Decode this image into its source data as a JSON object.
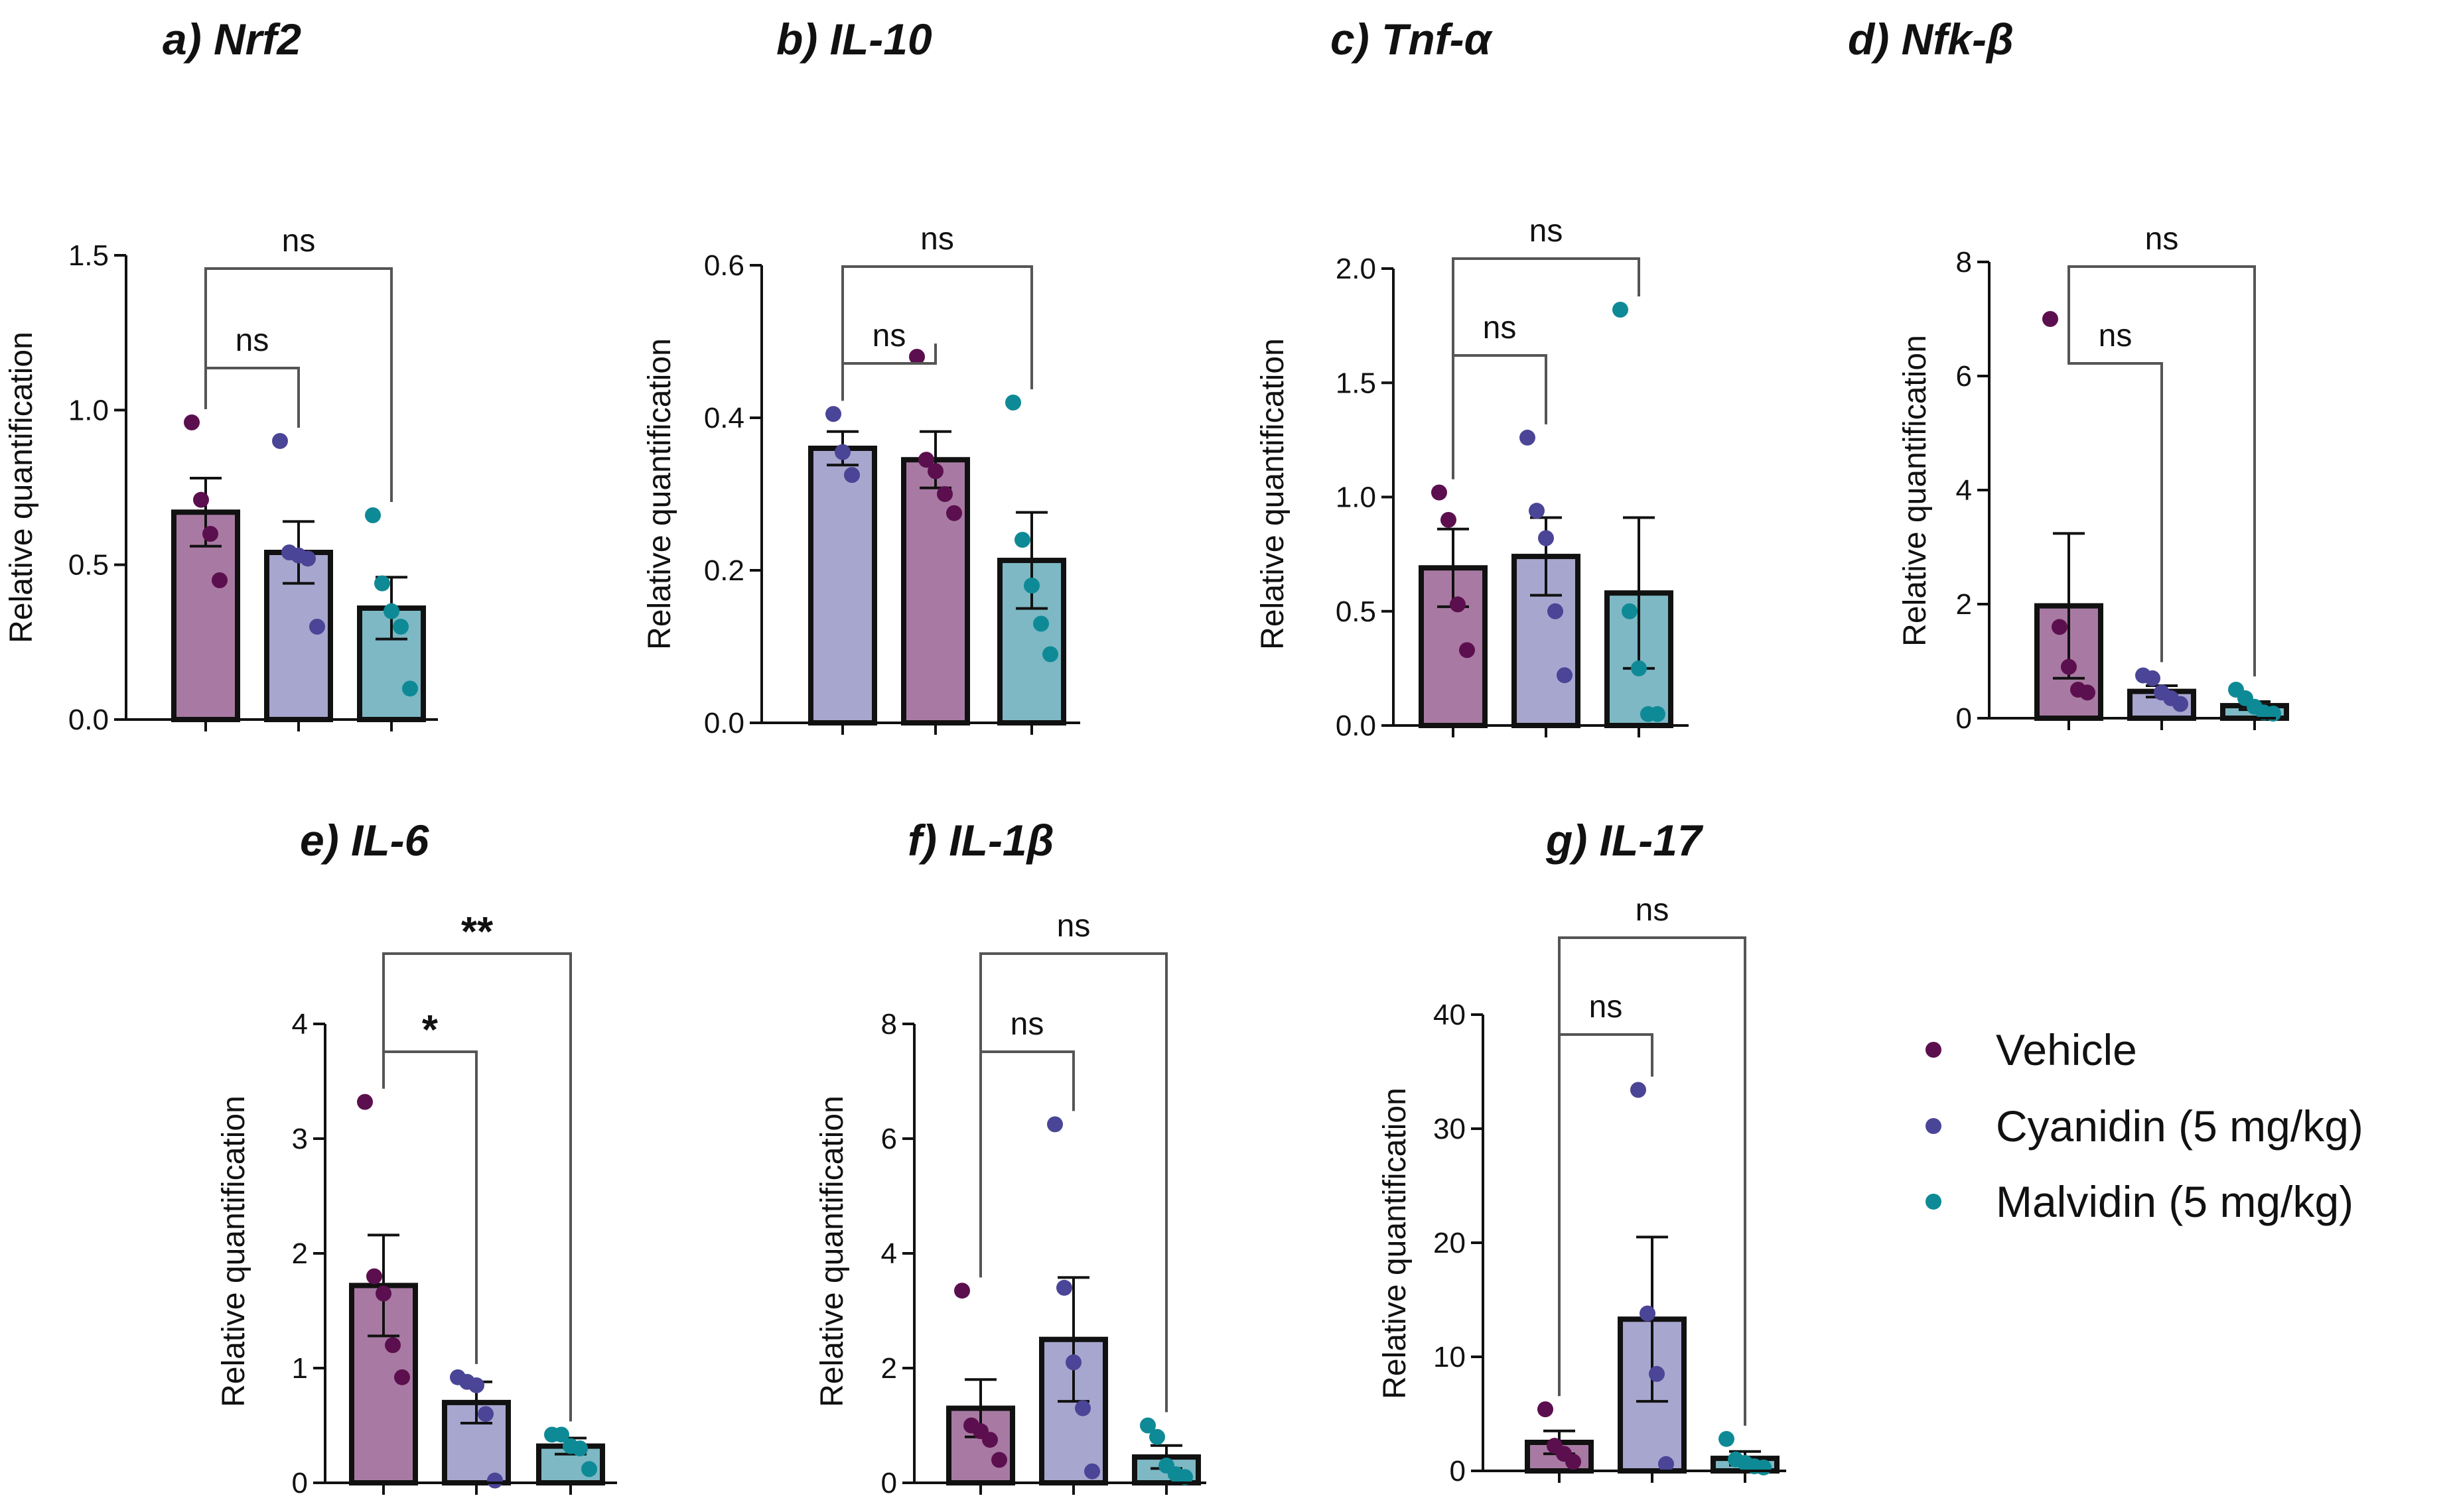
{
  "legend": [
    {
      "label": "Vehicle",
      "color": "#5c0f4e"
    },
    {
      "label": "Cyanidin (5 mg/kg)",
      "color": "#4a4596"
    },
    {
      "label": "Malvidin (5 mg/kg)",
      "color": "#0e8a96"
    }
  ],
  "fills": {
    "Vehicle": "#a87aa3",
    "Cyanidin": "#a7a6ce",
    "Malvidin": "#7db8c4"
  },
  "chart_data": [
    {
      "id": "nrf2",
      "type": "bar",
      "title": "a) Nrf2",
      "ylabel": "Relative quantification",
      "ylim": [
        0,
        1.5
      ],
      "ticks": [
        0.0,
        0.5,
        1.0,
        1.5
      ],
      "tick_labels": [
        "0.0",
        "0.5",
        "1.0",
        "1.5"
      ],
      "bars": [
        {
          "group": "Vehicle",
          "mean": 0.67,
          "sem": 0.11,
          "points": [
            0.96,
            0.71,
            0.6,
            0.45
          ]
        },
        {
          "group": "Cyanidin",
          "mean": 0.54,
          "sem": 0.1,
          "points": [
            0.9,
            0.54,
            0.53,
            0.52,
            0.3
          ]
        },
        {
          "group": "Malvidin",
          "mean": 0.36,
          "sem": 0.1,
          "points": [
            0.66,
            0.44,
            0.35,
            0.3,
            0.1
          ]
        }
      ],
      "comparisons": [
        {
          "from": 0,
          "to": 1,
          "label": "ns"
        },
        {
          "from": 0,
          "to": 2,
          "label": "ns"
        }
      ]
    },
    {
      "id": "il10",
      "type": "bar",
      "title": "b) IL-10",
      "ylabel": "Relative quantification",
      "ylim": [
        0,
        0.6
      ],
      "ticks": [
        0.0,
        0.2,
        0.4,
        0.6
      ],
      "tick_labels": [
        "0.0",
        "0.2",
        "0.4",
        "0.6"
      ],
      "bars": [
        {
          "group": "Cyanidin",
          "mean": 0.36,
          "sem": 0.022,
          "points": [
            0.405,
            0.355,
            0.325
          ]
        },
        {
          "group": "Vehicle",
          "mean": 0.345,
          "sem": 0.037,
          "points": [
            0.48,
            0.345,
            0.33,
            0.3,
            0.275
          ]
        },
        {
          "group": "Malvidin",
          "mean": 0.213,
          "sem": 0.063,
          "points": [
            0.42,
            0.24,
            0.18,
            0.13,
            0.09
          ]
        }
      ],
      "comparisons": [
        {
          "from": 0,
          "to": 1,
          "label": "ns"
        },
        {
          "from": 0,
          "to": 2,
          "label": "ns"
        }
      ]
    },
    {
      "id": "tnf",
      "type": "bar",
      "title": "c) Tnf-α",
      "ylabel": "Relative quantification",
      "ylim": [
        0,
        2.0
      ],
      "ticks": [
        0.0,
        0.5,
        1.0,
        1.5,
        2.0
      ],
      "tick_labels": [
        "0.0",
        "0.5",
        "1.0",
        "1.5",
        "2.0"
      ],
      "bars": [
        {
          "group": "Vehicle",
          "mean": 0.69,
          "sem": 0.17,
          "points": [
            1.02,
            0.9,
            0.53,
            0.33
          ]
        },
        {
          "group": "Cyanidin",
          "mean": 0.74,
          "sem": 0.17,
          "points": [
            1.26,
            0.94,
            0.82,
            0.5,
            0.22
          ]
        },
        {
          "group": "Malvidin",
          "mean": 0.58,
          "sem": 0.33,
          "points": [
            1.82,
            0.5,
            0.25,
            0.05,
            0.05
          ]
        }
      ],
      "comparisons": [
        {
          "from": 0,
          "to": 1,
          "label": "ns"
        },
        {
          "from": 0,
          "to": 2,
          "label": "ns"
        }
      ]
    },
    {
      "id": "nfkb",
      "type": "bar",
      "title": "d) Nfk-β",
      "ylabel": "Relative quantification",
      "ylim": [
        0,
        8
      ],
      "ticks": [
        0,
        2,
        4,
        6,
        8
      ],
      "tick_labels": [
        "0",
        "2",
        "4",
        "6",
        "8"
      ],
      "bars": [
        {
          "group": "Vehicle",
          "mean": 1.97,
          "sem": 1.27,
          "points": [
            7.0,
            1.6,
            0.9,
            0.5,
            0.45
          ]
        },
        {
          "group": "Cyanidin",
          "mean": 0.47,
          "sem": 0.1,
          "points": [
            0.75,
            0.7,
            0.45,
            0.35,
            0.25
          ]
        },
        {
          "group": "Malvidin",
          "mean": 0.22,
          "sem": 0.07,
          "points": [
            0.5,
            0.35,
            0.2,
            0.1,
            0.08
          ]
        }
      ],
      "comparisons": [
        {
          "from": 0,
          "to": 1,
          "label": "ns"
        },
        {
          "from": 0,
          "to": 2,
          "label": "ns"
        }
      ]
    },
    {
      "id": "il6",
      "type": "bar",
      "title": "e)  IL-6",
      "ylabel": "Relative quantification",
      "ylim": [
        0,
        4
      ],
      "ticks": [
        0,
        1,
        2,
        3,
        4
      ],
      "tick_labels": [
        "0",
        "1",
        "2",
        "3",
        "4"
      ],
      "bars": [
        {
          "group": "Vehicle",
          "mean": 1.72,
          "sem": 0.44,
          "points": [
            3.32,
            1.8,
            1.65,
            1.2,
            0.92
          ]
        },
        {
          "group": "Cyanidin",
          "mean": 0.7,
          "sem": 0.18,
          "points": [
            0.92,
            0.88,
            0.85,
            0.6,
            0.02
          ]
        },
        {
          "group": "Malvidin",
          "mean": 0.32,
          "sem": 0.07,
          "points": [
            0.42,
            0.42,
            0.32,
            0.3,
            0.12
          ]
        }
      ],
      "comparisons": [
        {
          "from": 0,
          "to": 1,
          "label": "*"
        },
        {
          "from": 0,
          "to": 2,
          "label": "**"
        }
      ]
    },
    {
      "id": "il1b",
      "type": "bar",
      "title": "f) IL-1β",
      "ylabel": "Relative quantification",
      "ylim": [
        0,
        8
      ],
      "ticks": [
        0,
        2,
        4,
        6,
        8
      ],
      "tick_labels": [
        "0",
        "2",
        "4",
        "6",
        "8"
      ],
      "bars": [
        {
          "group": "Vehicle",
          "mean": 1.3,
          "sem": 0.5,
          "points": [
            3.35,
            1.0,
            0.9,
            0.75,
            0.4
          ]
        },
        {
          "group": "Cyanidin",
          "mean": 2.5,
          "sem": 1.08,
          "points": [
            6.25,
            3.4,
            2.1,
            1.3,
            0.2
          ]
        },
        {
          "group": "Malvidin",
          "mean": 0.45,
          "sem": 0.2,
          "points": [
            1.0,
            0.8,
            0.3,
            0.15,
            0.1
          ]
        }
      ],
      "comparisons": [
        {
          "from": 0,
          "to": 1,
          "label": "ns"
        },
        {
          "from": 0,
          "to": 2,
          "label": "ns"
        }
      ]
    },
    {
      "id": "il17",
      "type": "bar",
      "title": "g) IL-17",
      "ylabel": "Relative quantification",
      "ylim": [
        0,
        40
      ],
      "ticks": [
        0,
        10,
        20,
        30,
        40
      ],
      "tick_labels": [
        "0",
        "10",
        "20",
        "30",
        "40"
      ],
      "bars": [
        {
          "group": "Vehicle",
          "mean": 2.5,
          "sem": 1.0,
          "points": [
            5.4,
            2.2,
            1.5,
            0.8
          ]
        },
        {
          "group": "Cyanidin",
          "mean": 13.3,
          "sem": 7.2,
          "points": [
            33.4,
            13.8,
            8.5,
            0.6
          ]
        },
        {
          "group": "Malvidin",
          "mean": 1.1,
          "sem": 0.6,
          "points": [
            2.8,
            1.0,
            0.7,
            0.4,
            0.3
          ]
        }
      ],
      "comparisons": [
        {
          "from": 0,
          "to": 1,
          "label": "ns"
        },
        {
          "from": 0,
          "to": 2,
          "label": "ns"
        }
      ]
    }
  ]
}
